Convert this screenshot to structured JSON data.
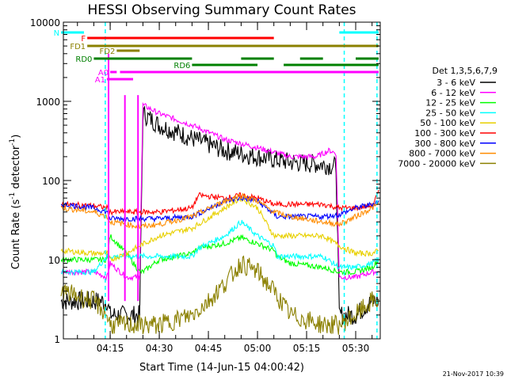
{
  "chart_data": {
    "type": "line",
    "title": "HESSI Observing Summary Count Rates",
    "xlabel": "Start Time (14-Jun-15 04:00:42)",
    "ylabel": "Count Rate (s⁻¹ detector⁻¹)",
    "ylabel_parts": {
      "main": "Count Rate (s",
      "sup1": "-1",
      "mid": " detector",
      "sup2": "-1",
      "end": ")"
    },
    "yscale": "log",
    "xlim": [
      "04:00:42",
      "05:37:30"
    ],
    "ylim": [
      1,
      10000
    ],
    "x_ticks": [
      "04:15",
      "04:30",
      "04:45",
      "05:00",
      "05:15",
      "05:30"
    ],
    "y_ticks": [
      "1",
      "10",
      "100",
      "1000",
      "10000"
    ],
    "legend_title": "Det 1,3,5,6,7,9",
    "legend_position": "right",
    "footer": "21-Nov-2017 10:39",
    "colors": {
      "s1": "#000000",
      "s2": "#ff00ff",
      "s3": "#00ff00",
      "s4": "#00ffff",
      "s5": "#e8d000",
      "s6": "#ff0000",
      "s7": "#0000ff",
      "s8": "#ff8c00",
      "s9": "#8b8000",
      "flag_N": "#00ffff",
      "flag_F": "#ff0000",
      "flag_FD": "#8b8000",
      "flag_RD": "#008000",
      "flag_A": "#ff00ff"
    },
    "series": [
      {
        "key": "s1",
        "name": "3 - 6 keV",
        "points": [
          [
            "04:00",
            3
          ],
          [
            "04:10",
            3
          ],
          [
            "04:14",
            3
          ],
          [
            "04:15",
            2
          ],
          [
            "04:20",
            2
          ],
          [
            "04:24",
            2
          ],
          [
            "04:25",
            700
          ],
          [
            "04:30",
            500
          ],
          [
            "04:40",
            340
          ],
          [
            "04:50",
            240
          ],
          [
            "05:00",
            200
          ],
          [
            "05:10",
            170
          ],
          [
            "05:20",
            160
          ],
          [
            "05:24",
            150
          ],
          [
            "05:25",
            2
          ],
          [
            "05:30",
            2
          ],
          [
            "05:35",
            3
          ],
          [
            "05:37",
            3
          ]
        ]
      },
      {
        "key": "s2",
        "name": "6 - 12 keV",
        "points": [
          [
            "04:00",
            7
          ],
          [
            "04:10",
            7
          ],
          [
            "04:14",
            6
          ],
          [
            "04:15",
            9
          ],
          [
            "04:20",
            6
          ],
          [
            "04:24",
            6
          ],
          [
            "04:25",
            900
          ],
          [
            "04:30",
            700
          ],
          [
            "04:40",
            500
          ],
          [
            "04:50",
            330
          ],
          [
            "05:00",
            260
          ],
          [
            "05:10",
            200
          ],
          [
            "05:18",
            200
          ],
          [
            "05:22",
            240
          ],
          [
            "05:24",
            220
          ],
          [
            "05:25",
            6
          ],
          [
            "05:30",
            6
          ],
          [
            "05:35",
            7
          ],
          [
            "05:37",
            7
          ]
        ]
      },
      {
        "key": "s3",
        "name": "12 - 25 keV",
        "points": [
          [
            "04:00",
            10
          ],
          [
            "04:10",
            10
          ],
          [
            "04:14",
            10
          ],
          [
            "04:15",
            20
          ],
          [
            "04:20",
            12
          ],
          [
            "04:24",
            7
          ],
          [
            "04:25",
            7
          ],
          [
            "04:30",
            10
          ],
          [
            "04:40",
            12
          ],
          [
            "04:42",
            14
          ],
          [
            "04:50",
            16
          ],
          [
            "04:55",
            19
          ],
          [
            "05:00",
            16
          ],
          [
            "05:05",
            13
          ],
          [
            "05:06",
            11
          ],
          [
            "05:10",
            9
          ],
          [
            "05:20",
            8
          ],
          [
            "05:25",
            7
          ],
          [
            "05:30",
            7
          ],
          [
            "05:35",
            8
          ],
          [
            "05:37",
            10
          ]
        ]
      },
      {
        "key": "s4",
        "name": "25 - 50 keV",
        "points": [
          [
            "04:00",
            7
          ],
          [
            "04:10",
            7
          ],
          [
            "04:14",
            11
          ],
          [
            "04:15",
            11
          ],
          [
            "04:20",
            11
          ],
          [
            "04:24",
            11
          ],
          [
            "04:30",
            11
          ],
          [
            "04:40",
            11
          ],
          [
            "04:42",
            14
          ],
          [
            "04:50",
            20
          ],
          [
            "04:55",
            30
          ],
          [
            "05:00",
            20
          ],
          [
            "05:05",
            15
          ],
          [
            "05:06",
            11
          ],
          [
            "05:10",
            11
          ],
          [
            "05:20",
            11
          ],
          [
            "05:25",
            8
          ],
          [
            "05:30",
            8
          ],
          [
            "05:35",
            9
          ],
          [
            "05:37",
            10
          ]
        ]
      },
      {
        "key": "s5",
        "name": "50 - 100 keV",
        "points": [
          [
            "04:00",
            13
          ],
          [
            "04:10",
            12
          ],
          [
            "04:14",
            12
          ],
          [
            "04:15",
            10
          ],
          [
            "04:20",
            12
          ],
          [
            "04:24",
            15
          ],
          [
            "04:30",
            20
          ],
          [
            "04:40",
            25
          ],
          [
            "04:50",
            45
          ],
          [
            "04:55",
            60
          ],
          [
            "05:00",
            45
          ],
          [
            "05:05",
            20
          ],
          [
            "05:10",
            20
          ],
          [
            "05:20",
            20
          ],
          [
            "05:25",
            15
          ],
          [
            "05:30",
            12
          ],
          [
            "05:35",
            12
          ],
          [
            "05:37",
            13
          ]
        ]
      },
      {
        "key": "s6",
        "name": "100 - 300 keV",
        "points": [
          [
            "04:00",
            50
          ],
          [
            "04:10",
            48
          ],
          [
            "04:14",
            45
          ],
          [
            "04:15",
            40
          ],
          [
            "04:20",
            40
          ],
          [
            "04:24",
            40
          ],
          [
            "04:30",
            40
          ],
          [
            "04:40",
            45
          ],
          [
            "04:42",
            65
          ],
          [
            "04:50",
            60
          ],
          [
            "04:55",
            65
          ],
          [
            "05:00",
            60
          ],
          [
            "05:05",
            50
          ],
          [
            "05:06",
            50
          ],
          [
            "05:10",
            50
          ],
          [
            "05:20",
            50
          ],
          [
            "05:25",
            45
          ],
          [
            "05:30",
            45
          ],
          [
            "05:35",
            48
          ],
          [
            "05:37",
            70
          ]
        ]
      },
      {
        "key": "s7",
        "name": "300 - 800 keV",
        "points": [
          [
            "04:00",
            50
          ],
          [
            "04:10",
            45
          ],
          [
            "04:14",
            40
          ],
          [
            "04:15",
            33
          ],
          [
            "04:20",
            33
          ],
          [
            "04:24",
            33
          ],
          [
            "04:30",
            33
          ],
          [
            "04:40",
            35
          ],
          [
            "04:50",
            55
          ],
          [
            "04:55",
            60
          ],
          [
            "05:00",
            55
          ],
          [
            "05:06",
            35
          ],
          [
            "05:10",
            35
          ],
          [
            "05:20",
            35
          ],
          [
            "05:25",
            37
          ],
          [
            "05:30",
            45
          ],
          [
            "05:35",
            50
          ],
          [
            "05:37",
            55
          ]
        ]
      },
      {
        "key": "s8",
        "name": "800 - 7000 keV",
        "points": [
          [
            "04:00",
            45
          ],
          [
            "04:10",
            40
          ],
          [
            "04:14",
            35
          ],
          [
            "04:15",
            30
          ],
          [
            "04:20",
            28
          ],
          [
            "04:24",
            26
          ],
          [
            "04:30",
            28
          ],
          [
            "04:40",
            35
          ],
          [
            "04:50",
            55
          ],
          [
            "04:55",
            65
          ],
          [
            "05:00",
            55
          ],
          [
            "05:05",
            40
          ],
          [
            "05:10",
            35
          ],
          [
            "05:20",
            30
          ],
          [
            "05:25",
            28
          ],
          [
            "05:30",
            35
          ],
          [
            "05:35",
            45
          ],
          [
            "05:37",
            50
          ]
        ]
      },
      {
        "key": "s9",
        "name": "7000 - 20000 keV",
        "points": [
          [
            "04:00",
            4
          ],
          [
            "04:10",
            3
          ],
          [
            "04:14",
            2
          ],
          [
            "04:15",
            1.5
          ],
          [
            "04:20",
            1.5
          ],
          [
            "04:24",
            1.5
          ],
          [
            "04:30",
            1.5
          ],
          [
            "04:40",
            2
          ],
          [
            "04:45",
            3
          ],
          [
            "04:50",
            5
          ],
          [
            "04:55",
            9
          ],
          [
            "05:00",
            7
          ],
          [
            "05:05",
            4
          ],
          [
            "05:10",
            2
          ],
          [
            "05:20",
            1.5
          ],
          [
            "05:25",
            1.5
          ],
          [
            "05:30",
            2
          ],
          [
            "05:35",
            3
          ],
          [
            "05:37",
            3
          ]
        ]
      }
    ],
    "flags": [
      {
        "label": "N",
        "color_key": "flag_N",
        "segments": [
          [
            "04:00",
            "04:07"
          ],
          [
            "05:25",
            "05:37"
          ]
        ]
      },
      {
        "label": "F",
        "color_key": "flag_F",
        "segments": [
          [
            "04:08",
            "05:05"
          ]
        ]
      },
      {
        "label": "FD1",
        "color_key": "flag_FD",
        "segments": [
          [
            "04:08",
            "05:37"
          ]
        ]
      },
      {
        "label": "FD2",
        "color_key": "flag_FD",
        "segments": [
          [
            "04:17",
            "04:24"
          ]
        ]
      },
      {
        "label": "RD0",
        "color_key": "flag_RD",
        "segments": [
          [
            "04:10",
            "04:40"
          ],
          [
            "04:55",
            "05:05"
          ],
          [
            "05:13",
            "05:20"
          ],
          [
            "05:30",
            "05:37"
          ]
        ]
      },
      {
        "label": "RD6",
        "color_key": "flag_RD",
        "segments": [
          [
            "04:40",
            "05:00"
          ],
          [
            "05:08",
            "05:37"
          ]
        ]
      },
      {
        "label": "A0",
        "color_key": "flag_A",
        "segments": [
          [
            "04:15",
            "04:17"
          ],
          [
            "04:18",
            "05:37"
          ]
        ]
      },
      {
        "label": "A1",
        "color_key": "flag_A",
        "segments": [
          [
            "04:14",
            "04:22"
          ]
        ]
      }
    ]
  }
}
